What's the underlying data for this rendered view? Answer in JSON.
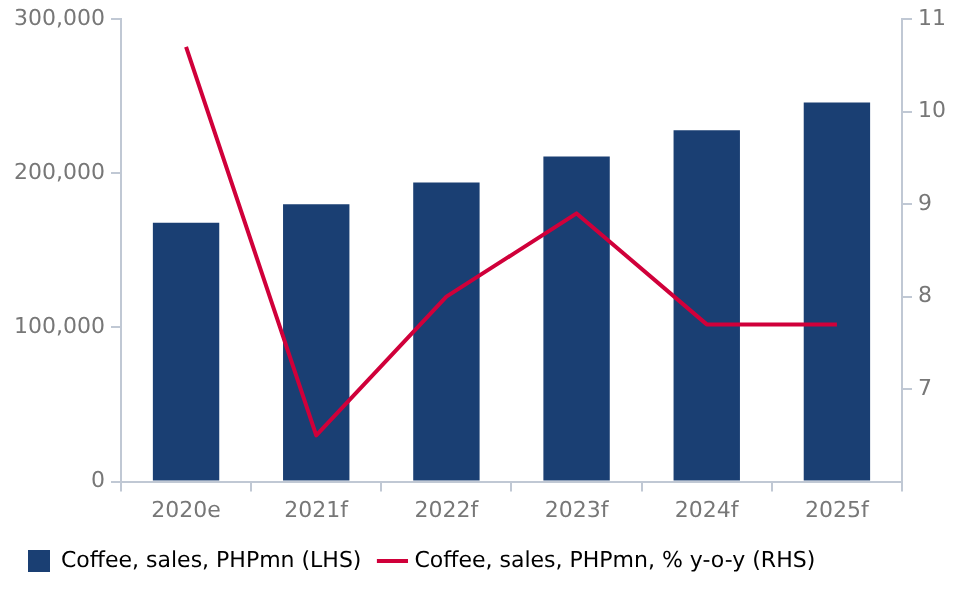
{
  "chart_data": {
    "type": "bar",
    "categories": [
      "2020e",
      "2021f",
      "2022f",
      "2023f",
      "2024f",
      "2025f"
    ],
    "series": [
      {
        "name": "Coffee, sales, PHPmn (LHS)",
        "color": "#1a3f73",
        "values": [
          168000,
          180000,
          194000,
          211000,
          228000,
          246000
        ]
      },
      {
        "name": "Coffee, sales, PHPmn, % y-o-y (RHS)",
        "type": "line",
        "axis": "y2",
        "color": "#d0003a",
        "values": [
          10.7,
          6.5,
          8.0,
          8.9,
          7.7,
          7.7
        ]
      }
    ],
    "ylim": [
      0,
      300000
    ],
    "yticks": [
      0,
      {
        "value": 100000,
        "label": "100,000"
      },
      {
        "value": 200000,
        "label": "200,000"
      },
      {
        "value": 300000,
        "label": "300,000"
      }
    ],
    "y2lim": [
      6,
      11
    ],
    "y2ticks": [
      7,
      8,
      9,
      10,
      11
    ],
    "grid": false,
    "legend": "bottom",
    "marker": "none"
  }
}
